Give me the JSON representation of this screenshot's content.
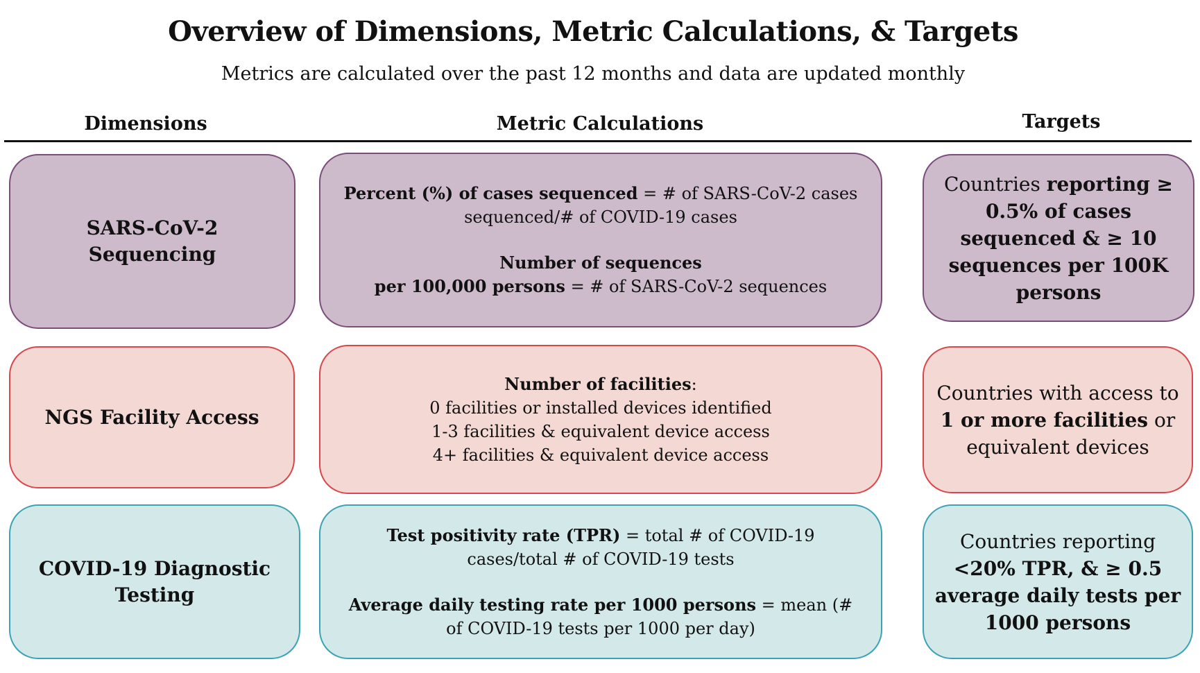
{
  "title": "Overview of Dimensions, Metric Calculations, & Targets",
  "subtitle": "Metrics are calculated over the past 12 months and data are updated monthly",
  "headers": {
    "dimensions": "Dimensions",
    "metrics": "Metric Calculations",
    "targets": "Targets"
  },
  "colors": {
    "purple_fill": "#cdbacb",
    "purple_border": "#7a4e7a",
    "pink_fill": "#f4d8d4",
    "pink_border": "#d9474a",
    "teal_fill": "#d3e8e9",
    "teal_border": "#3ba3b3"
  },
  "rows": [
    {
      "dimension": "SARS-CoV-2 Sequencing",
      "metric": {
        "p1_bold": "Percent (%) of cases sequenced",
        "p1_rest": " = # of SARS-CoV-2 cases sequenced/# of COVID-19 cases",
        "p2_bold_line1": "Number of sequences",
        "p2_bold_line2": "per 100,000 persons",
        "p2_rest": " =  # of SARS-CoV-2 sequences"
      },
      "target": {
        "t1": "Countries ",
        "t2": "reporting ≥ 0.5% of cases sequenced & ≥ 10 sequences per 100K persons"
      }
    },
    {
      "dimension": "NGS Facility Access",
      "metric": {
        "heading_bold": "Number of facilities",
        "heading_rest": ":",
        "line1": "0 facilities or installed devices identified",
        "line2": "1-3 facilities & equivalent device access",
        "line3": "4+ facilities & equivalent device access"
      },
      "target": {
        "t1": "Countries with access to ",
        "t2": "1 or more facilities",
        "t3": " or equivalent devices"
      }
    },
    {
      "dimension": "COVID-19 Diagnostic Testing",
      "metric": {
        "p1_bold": "Test positivity rate (TPR)",
        "p1_rest": " = total # of COVID-19 cases/total # of COVID-19 tests",
        "p2_bold": "Average daily testing rate per 1000 persons",
        "p2_rest": " = mean (# of COVID-19 tests per 1000 per day)"
      },
      "target": {
        "t1": "Countries reporting ",
        "t2": "<20% TPR, & ≥ 0.5 average daily tests per 1000 persons"
      }
    }
  ]
}
